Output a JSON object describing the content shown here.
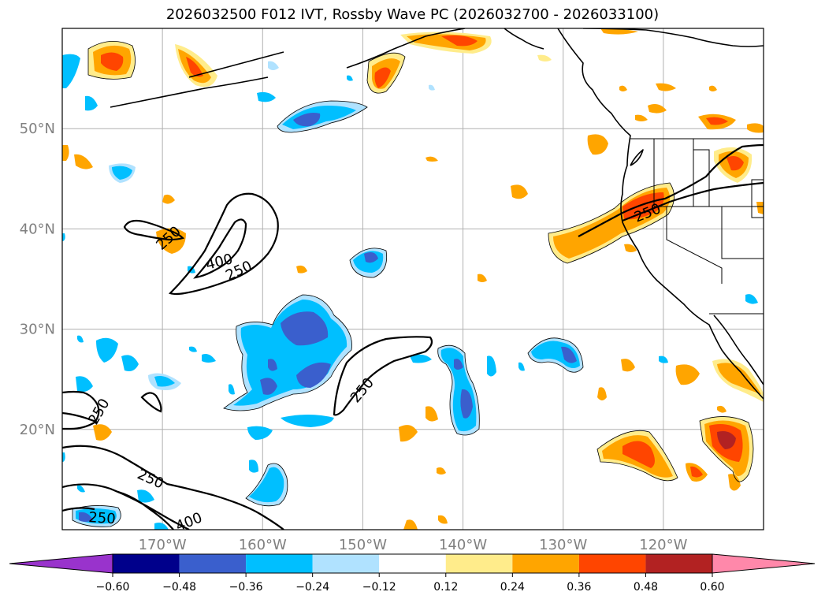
{
  "chart_data": {
    "type": "heatmap",
    "title": "2026032500 F012 IVT, Rossby Wave PC (2026032700 - 2026033100)",
    "lon_range": [
      -180,
      -110
    ],
    "lat_range": [
      10,
      60
    ],
    "x_ticks": [
      -170,
      -160,
      -150,
      -140,
      -130,
      -120
    ],
    "x_tick_labels": [
      "170°W",
      "160°W",
      "150°W",
      "140°W",
      "130°W",
      "120°W"
    ],
    "y_ticks": [
      20,
      30,
      40,
      50
    ],
    "y_tick_labels": [
      "20°N",
      "30°N",
      "40°N",
      "50°N"
    ],
    "grid": true,
    "colorbar": {
      "orientation": "horizontal",
      "extend": "both",
      "boundaries": [
        -0.6,
        -0.48,
        -0.36,
        -0.24,
        -0.12,
        0.12,
        0.24,
        0.36,
        0.48,
        0.6
      ],
      "tick_labels": [
        "−0.60",
        "−0.48",
        "−0.36",
        "−0.24",
        "−0.12",
        "0.12",
        "0.24",
        "0.36",
        "0.48",
        "0.60"
      ],
      "colors": [
        "#9933cc",
        "#00008b",
        "#3a5fcd",
        "#00bfff",
        "#b0e2ff",
        "#ffffff",
        "#ffec8b",
        "#ffa500",
        "#ff4500",
        "#b22222",
        "#ff88aa"
      ]
    },
    "contour_levels": [
      250,
      400
    ],
    "contour_labels": [
      "250",
      "400",
      "250",
      "250",
      "250",
      "250",
      "250",
      "400",
      "250"
    ]
  }
}
